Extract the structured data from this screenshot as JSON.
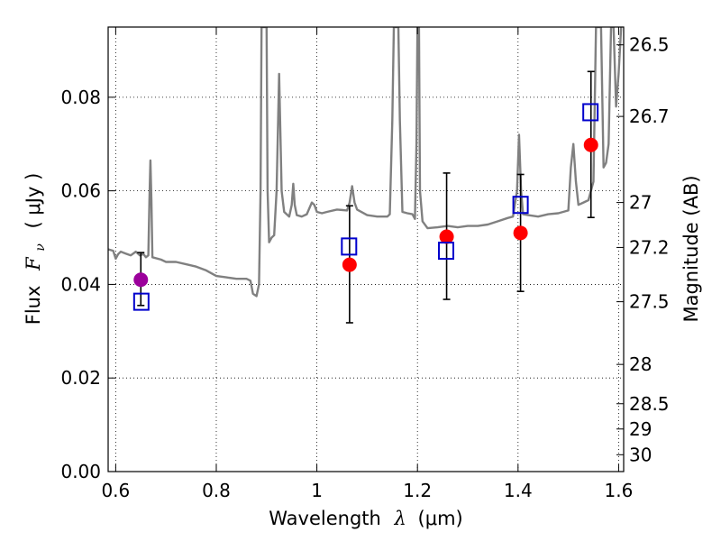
{
  "chart_data": {
    "type": "scatter",
    "xlabel": "Wavelength",
    "xlabel_symbol": "λ",
    "xlabel_unit": "(μm)",
    "ylabel": "Flux",
    "ylabel_symbol": "F",
    "ylabel_symbol_sub": "ν",
    "ylabel_unit": "( μJy )",
    "y2label": "Magnitude (AB)",
    "xlim": [
      0.585,
      1.61
    ],
    "ylim": [
      0.0,
      0.095
    ],
    "x_ticks": [
      0.6,
      0.8,
      1.0,
      1.2,
      1.4,
      1.6
    ],
    "x_tick_labels": [
      "0.6",
      "0.8",
      "1",
      "1.2",
      "1.4",
      "1.6"
    ],
    "y_ticks": [
      0.0,
      0.02,
      0.04,
      0.06,
      0.08
    ],
    "y_tick_labels": [
      "0.00",
      "0.02",
      "0.04",
      "0.06",
      "0.08"
    ],
    "y2_ticks": [
      {
        "label": "26.5",
        "flux": 0.0912
      },
      {
        "label": "26.7",
        "flux": 0.0759
      },
      {
        "label": "27",
        "flux": 0.0575
      },
      {
        "label": "27.2",
        "flux": 0.0479
      },
      {
        "label": "27.5",
        "flux": 0.0363
      },
      {
        "label": "28",
        "flux": 0.0229
      },
      {
        "label": "28.5",
        "flux": 0.0145
      },
      {
        "label": "29",
        "flux": 0.0091
      },
      {
        "label": "30",
        "flux": 0.0036
      }
    ],
    "grid": true,
    "grid_style": "dotted",
    "colors": {
      "spectrum": "#808080",
      "observed": "#ff0000",
      "observed_first": "#9b009b",
      "model": "#0000cc",
      "errorbar": "#000000"
    },
    "series": [
      {
        "kind": "spectrum_line",
        "points": [
          [
            0.585,
            0.0475
          ],
          [
            0.595,
            0.0472
          ],
          [
            0.6,
            0.0455
          ],
          [
            0.605,
            0.0465
          ],
          [
            0.61,
            0.047
          ],
          [
            0.62,
            0.0466
          ],
          [
            0.63,
            0.0462
          ],
          [
            0.64,
            0.047
          ],
          [
            0.648,
            0.0462
          ],
          [
            0.655,
            0.0465
          ],
          [
            0.66,
            0.0458
          ],
          [
            0.665,
            0.0462
          ],
          [
            0.667,
            0.058
          ],
          [
            0.669,
            0.0665
          ],
          [
            0.671,
            0.058
          ],
          [
            0.673,
            0.0458
          ],
          [
            0.69,
            0.0453
          ],
          [
            0.7,
            0.0448
          ],
          [
            0.72,
            0.0448
          ],
          [
            0.74,
            0.0443
          ],
          [
            0.76,
            0.0438
          ],
          [
            0.78,
            0.043
          ],
          [
            0.8,
            0.0418
          ],
          [
            0.82,
            0.0415
          ],
          [
            0.84,
            0.0412
          ],
          [
            0.86,
            0.0412
          ],
          [
            0.868,
            0.0408
          ],
          [
            0.873,
            0.038
          ],
          [
            0.88,
            0.0375
          ],
          [
            0.885,
            0.04
          ],
          [
            0.888,
            0.06
          ],
          [
            0.89,
            0.095
          ],
          [
            0.9,
            0.095
          ],
          [
            0.902,
            0.06
          ],
          [
            0.905,
            0.049
          ],
          [
            0.91,
            0.05
          ],
          [
            0.915,
            0.0505
          ],
          [
            0.92,
            0.06
          ],
          [
            0.925,
            0.085
          ],
          [
            0.93,
            0.06
          ],
          [
            0.935,
            0.0555
          ],
          [
            0.945,
            0.0545
          ],
          [
            0.95,
            0.057
          ],
          [
            0.953,
            0.0615
          ],
          [
            0.956,
            0.057
          ],
          [
            0.96,
            0.0548
          ],
          [
            0.97,
            0.0545
          ],
          [
            0.98,
            0.055
          ],
          [
            0.99,
            0.0575
          ],
          [
            0.995,
            0.057
          ],
          [
            1.0,
            0.0555
          ],
          [
            1.01,
            0.0552
          ],
          [
            1.02,
            0.0555
          ],
          [
            1.04,
            0.056
          ],
          [
            1.06,
            0.0558
          ],
          [
            1.065,
            0.0575
          ],
          [
            1.07,
            0.061
          ],
          [
            1.075,
            0.0575
          ],
          [
            1.08,
            0.056
          ],
          [
            1.1,
            0.0548
          ],
          [
            1.12,
            0.0545
          ],
          [
            1.14,
            0.0545
          ],
          [
            1.145,
            0.055
          ],
          [
            1.15,
            0.075
          ],
          [
            1.153,
            0.095
          ],
          [
            1.162,
            0.095
          ],
          [
            1.165,
            0.075
          ],
          [
            1.17,
            0.0555
          ],
          [
            1.18,
            0.0552
          ],
          [
            1.19,
            0.055
          ],
          [
            1.195,
            0.054
          ],
          [
            1.198,
            0.07
          ],
          [
            1.2,
            0.095
          ],
          [
            1.203,
            0.095
          ],
          [
            1.205,
            0.06
          ],
          [
            1.21,
            0.0535
          ],
          [
            1.22,
            0.052
          ],
          [
            1.24,
            0.0522
          ],
          [
            1.26,
            0.0525
          ],
          [
            1.28,
            0.0522
          ],
          [
            1.3,
            0.0525
          ],
          [
            1.32,
            0.0525
          ],
          [
            1.34,
            0.0528
          ],
          [
            1.36,
            0.0535
          ],
          [
            1.38,
            0.0542
          ],
          [
            1.39,
            0.0545
          ],
          [
            1.398,
            0.06
          ],
          [
            1.402,
            0.072
          ],
          [
            1.406,
            0.06
          ],
          [
            1.41,
            0.055
          ],
          [
            1.42,
            0.0548
          ],
          [
            1.44,
            0.0545
          ],
          [
            1.46,
            0.055
          ],
          [
            1.48,
            0.0552
          ],
          [
            1.5,
            0.0558
          ],
          [
            1.505,
            0.065
          ],
          [
            1.51,
            0.07
          ],
          [
            1.515,
            0.062
          ],
          [
            1.52,
            0.057
          ],
          [
            1.53,
            0.0575
          ],
          [
            1.54,
            0.058
          ],
          [
            1.55,
            0.062
          ],
          [
            1.555,
            0.095
          ],
          [
            1.565,
            0.095
          ],
          [
            1.57,
            0.065
          ],
          [
            1.575,
            0.066
          ],
          [
            1.58,
            0.07
          ],
          [
            1.585,
            0.095
          ],
          [
            1.59,
            0.095
          ],
          [
            1.595,
            0.078
          ],
          [
            1.6,
            0.085
          ],
          [
            1.605,
            0.095
          ]
        ]
      },
      {
        "kind": "observed_points",
        "points": [
          {
            "x": 0.65,
            "y": 0.041,
            "yerr_low": 0.0355,
            "yerr_high": 0.0468
          },
          {
            "x": 1.065,
            "y": 0.0442,
            "yerr_low": 0.0318,
            "yerr_high": 0.0568
          },
          {
            "x": 1.258,
            "y": 0.0502,
            "yerr_low": 0.0368,
            "yerr_high": 0.0638
          },
          {
            "x": 1.405,
            "y": 0.051,
            "yerr_low": 0.0385,
            "yerr_high": 0.0635
          },
          {
            "x": 1.545,
            "y": 0.0698,
            "yerr_low": 0.0543,
            "yerr_high": 0.0855
          }
        ]
      },
      {
        "kind": "model_points",
        "points": [
          {
            "x": 0.651,
            "y": 0.0363
          },
          {
            "x": 1.064,
            "y": 0.0481
          },
          {
            "x": 1.257,
            "y": 0.0472
          },
          {
            "x": 1.405,
            "y": 0.057
          },
          {
            "x": 1.544,
            "y": 0.0768
          }
        ]
      }
    ]
  }
}
